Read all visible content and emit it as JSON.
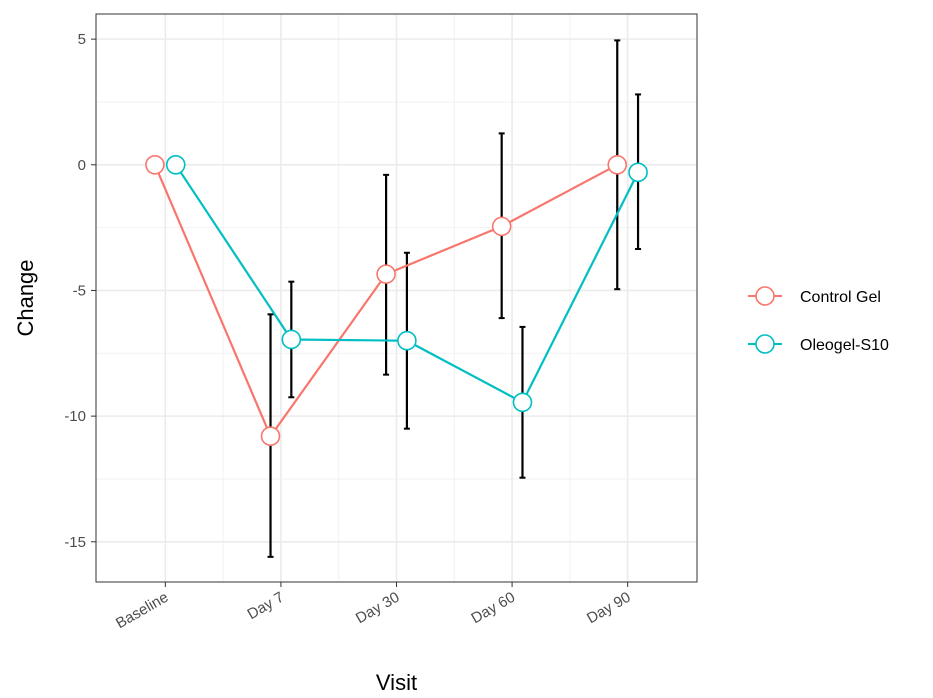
{
  "chart_data": {
    "type": "line",
    "xlabel": "Visit",
    "ylabel": "Change",
    "categories": [
      "Baseline",
      "Day 7",
      "Day 30",
      "Day 60",
      "Day 90"
    ],
    "yticks": [
      5,
      0,
      -5,
      -10,
      -15
    ],
    "ylim": [
      -16.6,
      6
    ],
    "grid": true,
    "legend_position": "right",
    "series": [
      {
        "name": "Control Gel",
        "color": "#F8766D",
        "values": [
          0,
          -10.8,
          -4.35,
          -2.45,
          0
        ],
        "lower": [
          null,
          -15.6,
          -8.35,
          -6.1,
          -4.95
        ],
        "upper": [
          null,
          -5.95,
          -0.4,
          1.25,
          4.95
        ]
      },
      {
        "name": "Oleogel-S10",
        "color": "#00BFC4",
        "values": [
          0,
          -6.95,
          -7.0,
          -9.45,
          -0.3
        ],
        "lower": [
          null,
          -9.25,
          -10.5,
          -12.45,
          -3.35
        ],
        "upper": [
          null,
          -4.65,
          -3.5,
          -6.45,
          2.8
        ]
      }
    ]
  }
}
